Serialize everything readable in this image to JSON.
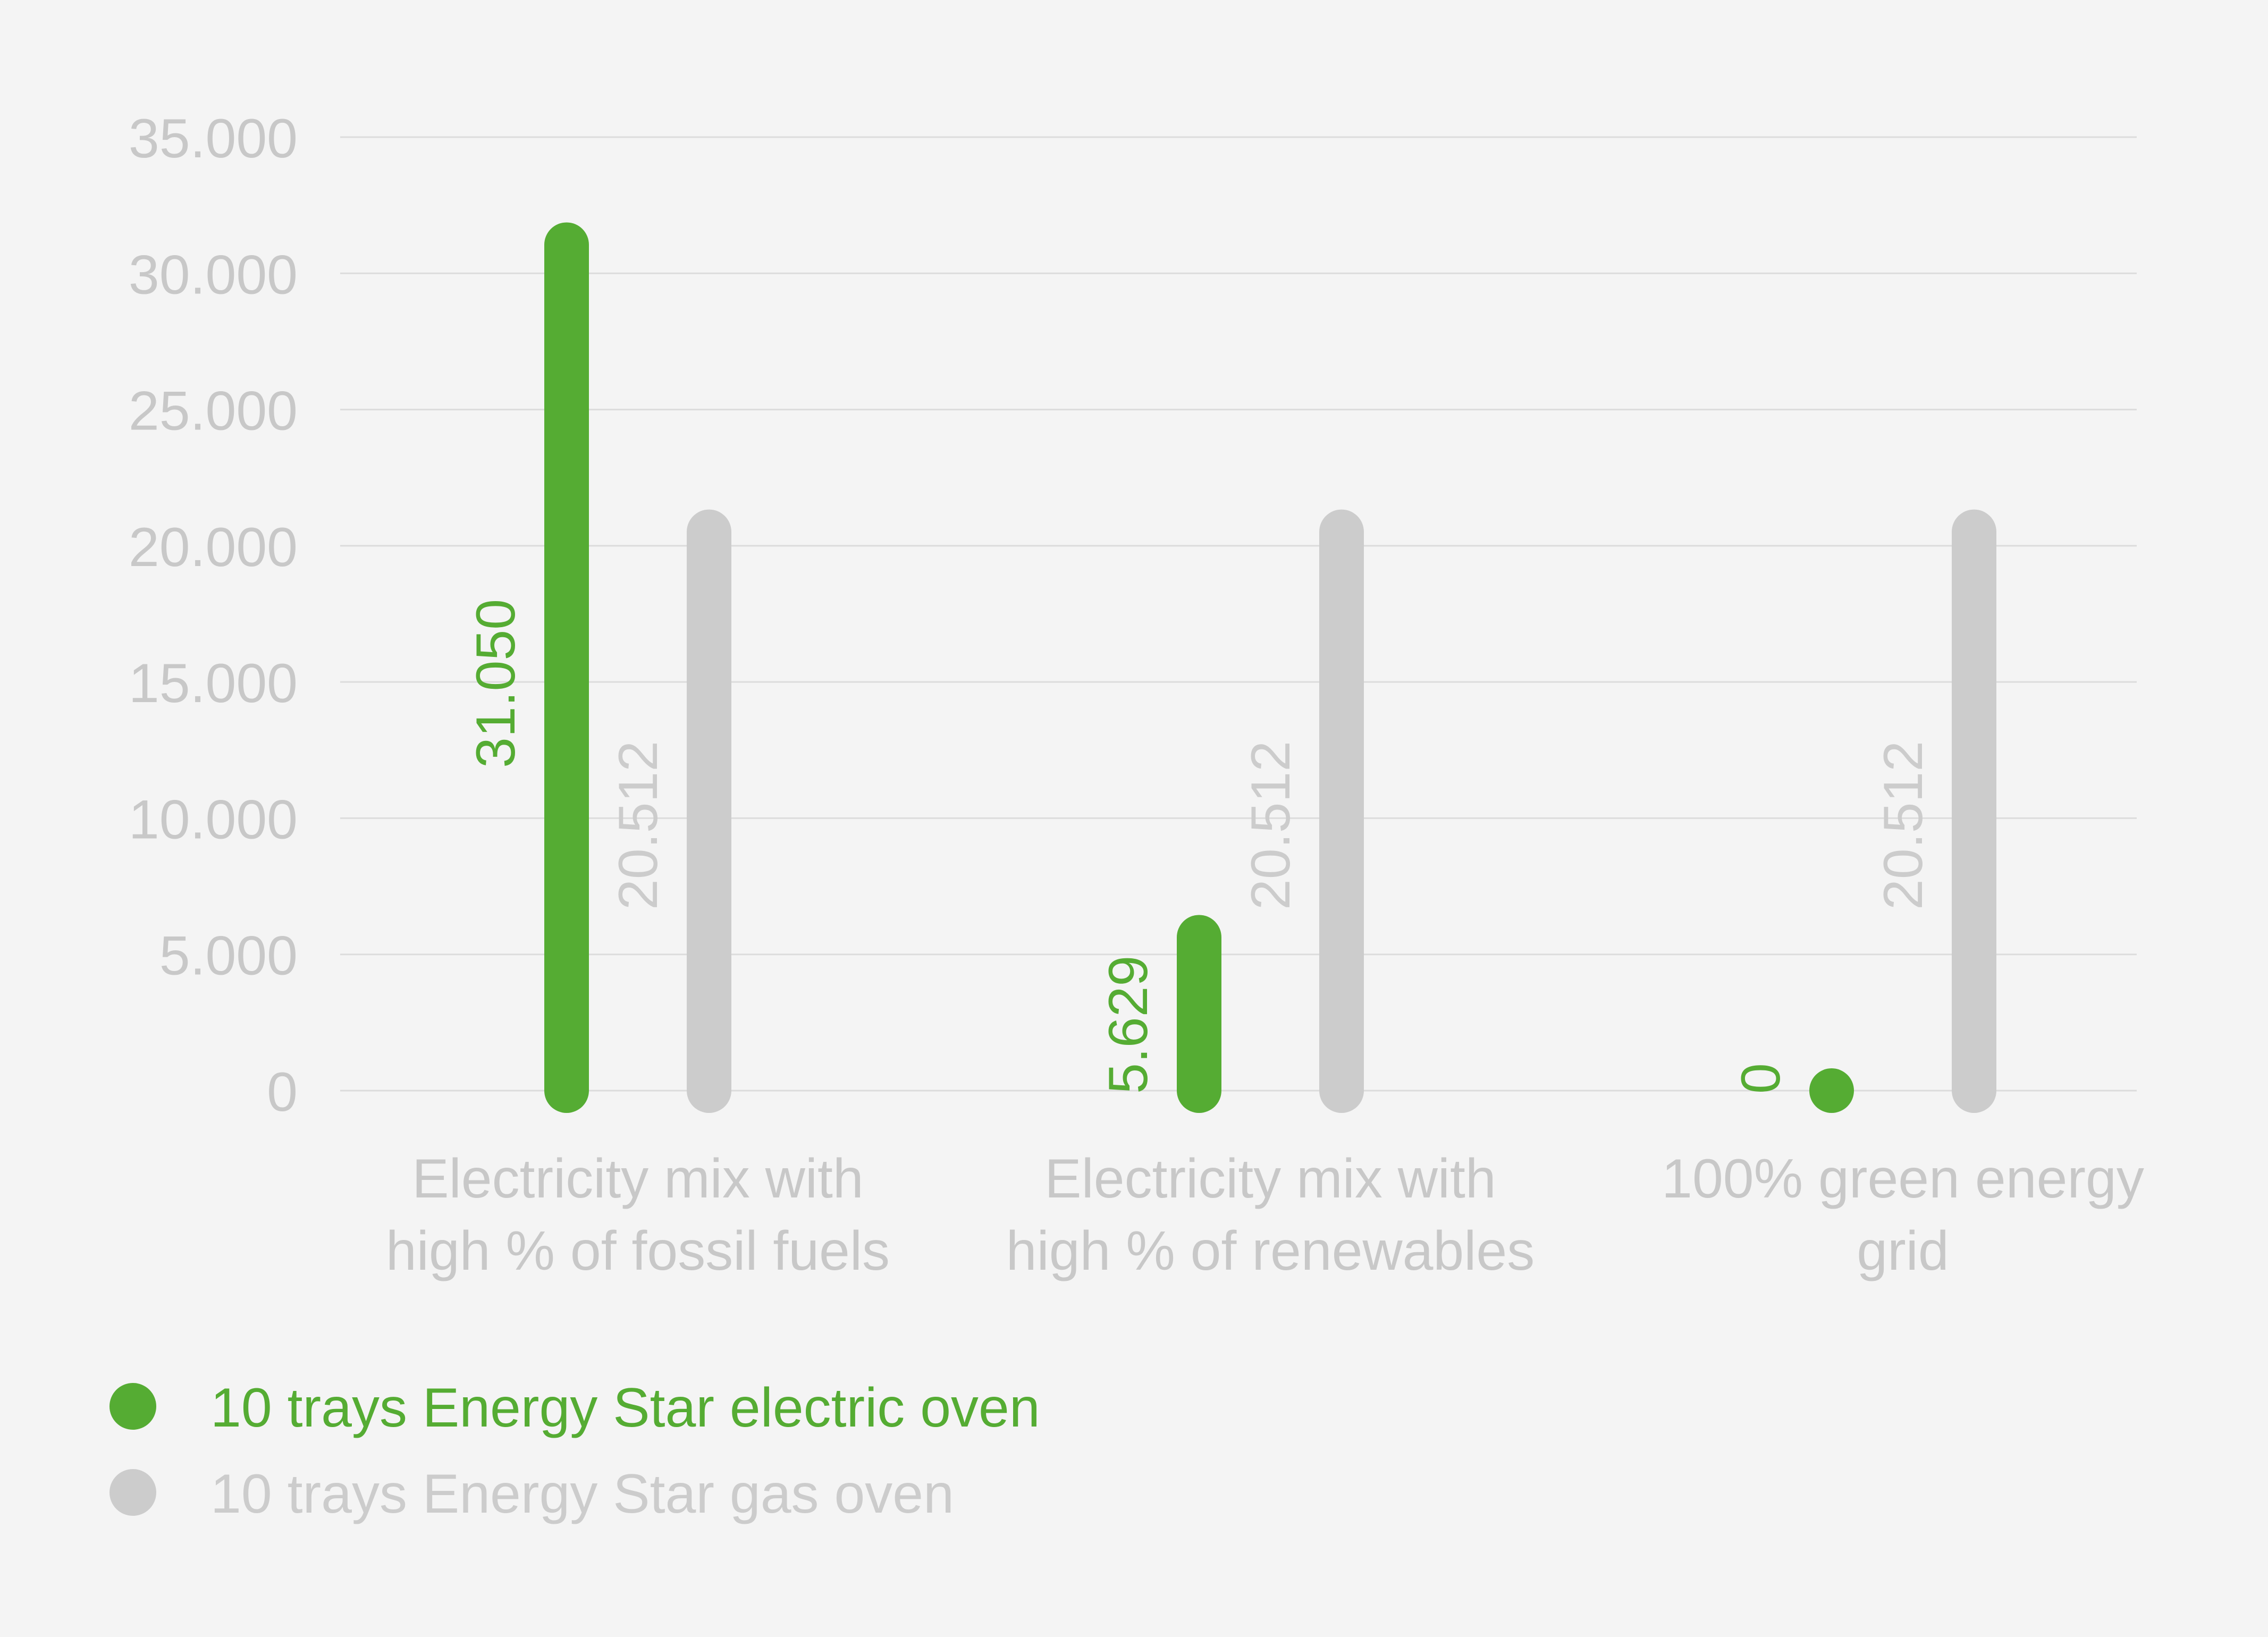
{
  "chart_data": {
    "type": "bar",
    "categories": [
      [
        "Electricity mix with",
        "high % of fossil fuels"
      ],
      [
        "Electricity mix with",
        "high % of renewables"
      ],
      [
        "100% green energy",
        "grid"
      ]
    ],
    "series": [
      {
        "name": "10 trays Energy Star electric oven",
        "values": [
          31050,
          5629,
          0
        ],
        "value_labels": [
          "31.050",
          "5.629",
          "0"
        ],
        "color": "#55ac33"
      },
      {
        "name": "10 trays Energy Star gas oven",
        "values": [
          20512,
          20512,
          20512
        ],
        "value_labels": [
          "20.512",
          "20.512",
          "20.512"
        ],
        "color": "#cccccc"
      }
    ],
    "y_ticks": [
      {
        "value": 0,
        "label": "0"
      },
      {
        "value": 5000,
        "label": "5.000"
      },
      {
        "value": 10000,
        "label": "10.000"
      },
      {
        "value": 15000,
        "label": "15.000"
      },
      {
        "value": 20000,
        "label": "20.000"
      },
      {
        "value": 25000,
        "label": "25.000"
      },
      {
        "value": 30000,
        "label": "30.000"
      },
      {
        "value": 35000,
        "label": "35.000"
      }
    ],
    "ylim": [
      0,
      35000
    ],
    "title": "",
    "xlabel": "",
    "ylabel": "",
    "grid": true,
    "legend_position": "bottom-left",
    "tick_color": "#c8c8c8",
    "grid_color": "#dcdcdc",
    "background": "#f4f4f4"
  }
}
